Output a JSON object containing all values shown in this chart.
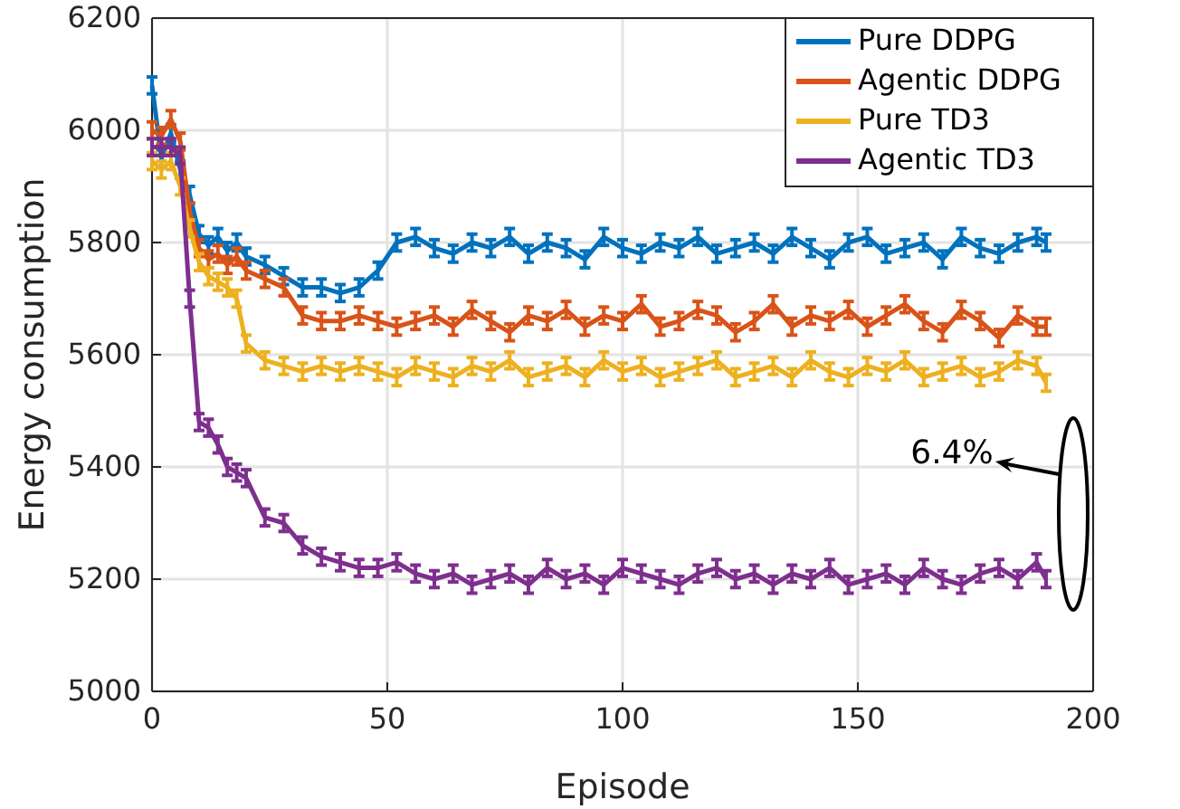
{
  "chart_data": {
    "type": "line",
    "xlabel": "Episode",
    "ylabel": "Energy consumption",
    "x": [
      0,
      2,
      4,
      6,
      8,
      10,
      12,
      14,
      16,
      18,
      20,
      24,
      28,
      32,
      36,
      40,
      44,
      48,
      52,
      56,
      60,
      64,
      68,
      72,
      76,
      80,
      84,
      88,
      92,
      96,
      100,
      104,
      108,
      112,
      116,
      120,
      124,
      128,
      132,
      136,
      140,
      144,
      148,
      152,
      156,
      160,
      164,
      168,
      172,
      176,
      180,
      184,
      188,
      190
    ],
    "series": [
      {
        "name": "Pure DDPG",
        "color": "#0072bd",
        "values": [
          6080,
          5950,
          5995,
          5930,
          5885,
          5815,
          5795,
          5810,
          5785,
          5800,
          5775,
          5760,
          5740,
          5720,
          5720,
          5710,
          5720,
          5750,
          5800,
          5810,
          5790,
          5780,
          5800,
          5790,
          5810,
          5780,
          5800,
          5790,
          5770,
          5810,
          5790,
          5780,
          5800,
          5790,
          5810,
          5780,
          5790,
          5800,
          5780,
          5810,
          5790,
          5770,
          5800,
          5810,
          5780,
          5790,
          5800,
          5770,
          5810,
          5790,
          5780,
          5800,
          5810,
          5800
        ],
        "errors": [
          15,
          15,
          15,
          15,
          15,
          15,
          15,
          15,
          15,
          15,
          15,
          15,
          15,
          15,
          15,
          15,
          15,
          15,
          15,
          15,
          15,
          15,
          15,
          15,
          15,
          15,
          15,
          15,
          15,
          15,
          15,
          15,
          15,
          15,
          15,
          15,
          15,
          15,
          15,
          15,
          15,
          15,
          15,
          15,
          15,
          15,
          15,
          15,
          15,
          15,
          15,
          15,
          15,
          15
        ]
      },
      {
        "name": "Agentic DDPG",
        "color": "#d95319",
        "values": [
          6000,
          5990,
          6020,
          5980,
          5855,
          5790,
          5770,
          5780,
          5760,
          5775,
          5750,
          5735,
          5720,
          5670,
          5660,
          5660,
          5670,
          5660,
          5650,
          5660,
          5670,
          5650,
          5680,
          5660,
          5640,
          5670,
          5660,
          5680,
          5650,
          5670,
          5660,
          5690,
          5650,
          5660,
          5680,
          5670,
          5640,
          5660,
          5690,
          5650,
          5670,
          5660,
          5680,
          5650,
          5670,
          5690,
          5660,
          5640,
          5680,
          5660,
          5630,
          5670,
          5650,
          5650
        ],
        "errors": [
          15,
          15,
          15,
          15,
          15,
          15,
          15,
          15,
          15,
          15,
          15,
          15,
          15,
          15,
          15,
          15,
          15,
          15,
          15,
          15,
          15,
          15,
          15,
          15,
          15,
          15,
          15,
          15,
          15,
          15,
          15,
          15,
          15,
          15,
          15,
          15,
          15,
          15,
          15,
          15,
          15,
          15,
          15,
          15,
          15,
          15,
          15,
          15,
          15,
          15,
          15,
          15,
          15,
          15
        ]
      },
      {
        "name": "Pure TD3",
        "color": "#edb120",
        "values": [
          5945,
          5930,
          5945,
          5900,
          5825,
          5765,
          5740,
          5730,
          5720,
          5700,
          5620,
          5590,
          5580,
          5570,
          5580,
          5570,
          5580,
          5570,
          5560,
          5580,
          5570,
          5560,
          5580,
          5570,
          5590,
          5560,
          5570,
          5580,
          5560,
          5590,
          5570,
          5580,
          5560,
          5570,
          5580,
          5590,
          5560,
          5570,
          5580,
          5560,
          5590,
          5570,
          5560,
          5580,
          5570,
          5590,
          5560,
          5570,
          5580,
          5560,
          5570,
          5590,
          5580,
          5550
        ],
        "errors": [
          15,
          15,
          15,
          15,
          15,
          15,
          15,
          15,
          15,
          15,
          15,
          15,
          15,
          15,
          15,
          15,
          15,
          15,
          15,
          15,
          15,
          15,
          15,
          15,
          15,
          15,
          15,
          15,
          15,
          15,
          15,
          15,
          15,
          15,
          15,
          15,
          15,
          15,
          15,
          15,
          15,
          15,
          15,
          15,
          15,
          15,
          15,
          15,
          15,
          15,
          15,
          15,
          15,
          15
        ]
      },
      {
        "name": "Agentic TD3",
        "color": "#7e2f8e",
        "values": [
          5970,
          5970,
          5970,
          5955,
          5700,
          5480,
          5470,
          5440,
          5400,
          5390,
          5380,
          5310,
          5300,
          5260,
          5240,
          5230,
          5220,
          5220,
          5230,
          5210,
          5200,
          5210,
          5190,
          5200,
          5210,
          5190,
          5220,
          5200,
          5210,
          5190,
          5220,
          5210,
          5200,
          5190,
          5210,
          5220,
          5200,
          5210,
          5190,
          5210,
          5200,
          5220,
          5190,
          5200,
          5210,
          5190,
          5220,
          5200,
          5190,
          5210,
          5220,
          5200,
          5230,
          5200
        ],
        "errors": [
          15,
          15,
          15,
          15,
          15,
          15,
          15,
          15,
          15,
          15,
          15,
          15,
          15,
          15,
          15,
          15,
          15,
          15,
          15,
          15,
          15,
          15,
          15,
          15,
          15,
          15,
          15,
          15,
          15,
          15,
          15,
          15,
          15,
          15,
          15,
          15,
          15,
          15,
          15,
          15,
          15,
          15,
          15,
          15,
          15,
          15,
          15,
          15,
          15,
          15,
          15,
          15,
          15,
          15
        ]
      }
    ],
    "xlim": [
      0,
      200
    ],
    "xticks": [
      0,
      50,
      100,
      150,
      200
    ],
    "ylim": [
      5000,
      6200
    ],
    "yticks": [
      5000,
      5200,
      5400,
      5600,
      5800,
      6000,
      6200
    ],
    "grid": true,
    "legend": "top right",
    "marker": "none",
    "line_style": "solid",
    "annotations": [
      "6.4%"
    ]
  }
}
